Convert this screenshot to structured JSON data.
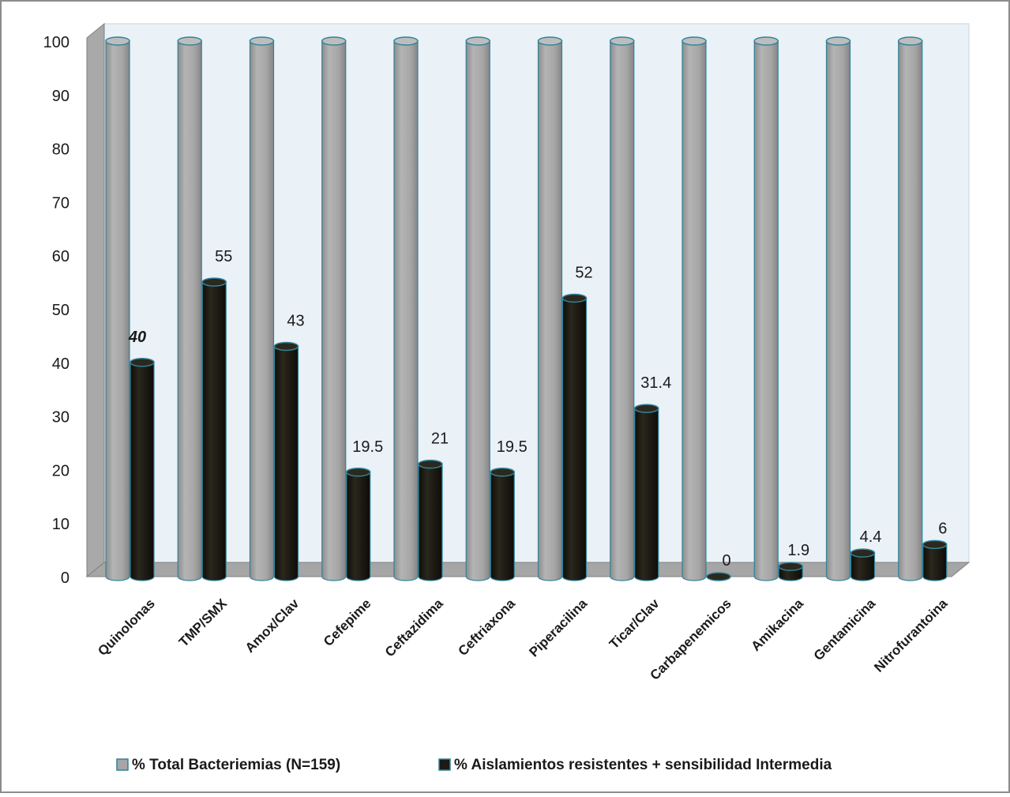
{
  "chart_data": {
    "type": "bar",
    "style": "3d-cylinder",
    "categories": [
      "Quinolonas",
      "TMP/SMX",
      "Amox/Clav",
      "Cefepime",
      "Ceftazidima",
      "Ceftriaxona",
      "Piperacilina",
      "Ticar/Clav",
      "Carbapenemicos",
      "Amikacina",
      "Gentamicina",
      "Nitrofurantoina"
    ],
    "series": [
      {
        "name": "% Total Bacteriemias (N=159)",
        "values": [
          100,
          100,
          100,
          100,
          100,
          100,
          100,
          100,
          100,
          100,
          100,
          100
        ],
        "color": "#a6a6a6",
        "edge_color": "#31849b"
      },
      {
        "name": "% Aislamientos resistentes + sensibilidad Intermedia",
        "values": [
          40,
          55,
          43,
          19.5,
          21,
          19.5,
          52,
          31.4,
          0,
          1.9,
          4.4,
          6
        ],
        "data_labels": [
          "40",
          "55",
          "43",
          "19.5",
          "21",
          "19.5",
          "52",
          "31.4",
          "0",
          "1.9",
          "4.4",
          "6"
        ],
        "emphasized_label_index": 0,
        "color": "#1c1a12",
        "edge_color": "#31849b"
      }
    ],
    "ylim": [
      0,
      100
    ],
    "yticks": [
      0,
      10,
      20,
      30,
      40,
      50,
      60,
      70,
      80,
      90,
      100
    ],
    "grid": false,
    "legend": "bottom",
    "wall_color": "#eaf1f7",
    "floor_color": "#a6a6a6"
  }
}
